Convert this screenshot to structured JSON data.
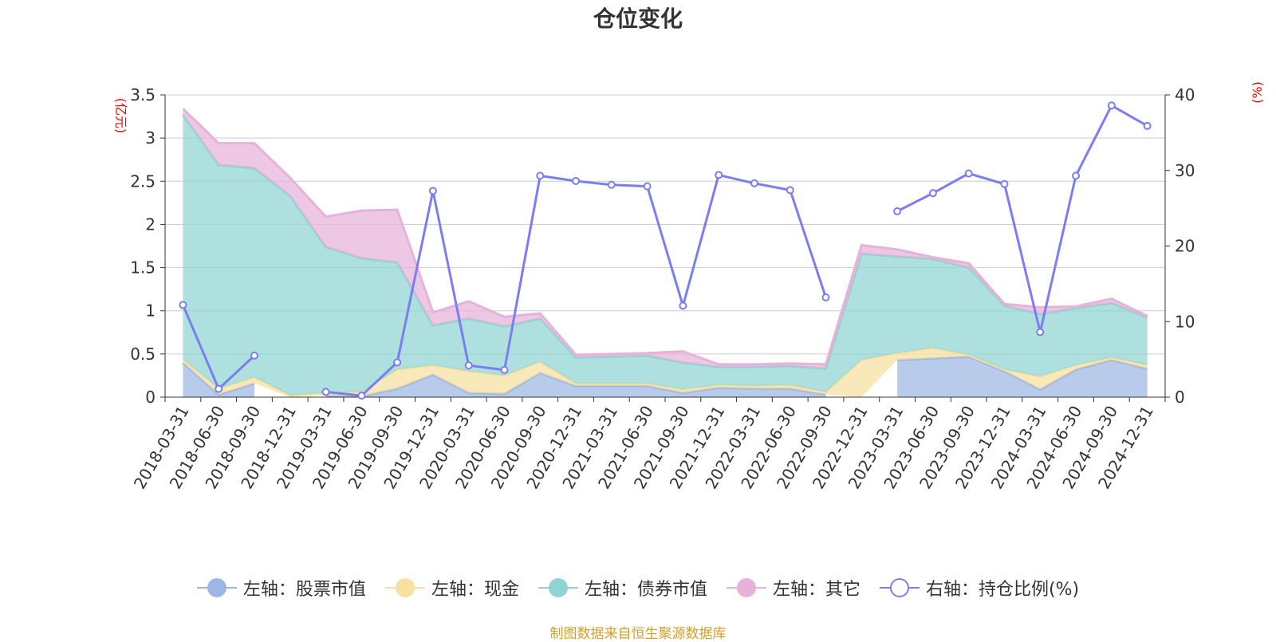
{
  "title": "仓位变化",
  "source_note": "制图数据来自恒生聚源数据库",
  "colors": {
    "stock": "#9db7e2",
    "cash": "#f7e0a0",
    "bond": "#8fd4d3",
    "other": "#e7b2da",
    "ratio": "#7b7ef0",
    "unit": "#ff0000"
  },
  "legend": [
    {
      "key": "stock",
      "label": "左轴：股票市值"
    },
    {
      "key": "cash",
      "label": "左轴：现金"
    },
    {
      "key": "bond",
      "label": "左轴：债券市值"
    },
    {
      "key": "other",
      "label": "左轴：其它"
    },
    {
      "key": "ratio",
      "label": "右轴：持仓比例(%)"
    }
  ],
  "chart_data": {
    "type": "area",
    "title": "仓位变化",
    "y_left_unit": "(亿元)",
    "y_right_unit": "(%)",
    "y_left_range": [
      0,
      3.5
    ],
    "y_left_ticks": [
      "0",
      "0.5",
      "1",
      "1.5",
      "2",
      "2.5",
      "3",
      "3.5"
    ],
    "y_right_range": [
      0,
      40
    ],
    "y_right_ticks": [
      "0",
      "10",
      "20",
      "30",
      "40"
    ],
    "grid": true,
    "legend_position": "bottom",
    "stacked": true,
    "categories": [
      "2018-03-31",
      "2018-06-30",
      "2018-09-30",
      "2018-12-31",
      "2019-03-31",
      "2019-06-30",
      "2019-09-30",
      "2019-12-31",
      "2020-03-31",
      "2020-06-30",
      "2020-09-30",
      "2020-12-31",
      "2021-03-31",
      "2021-06-30",
      "2021-09-30",
      "2021-12-31",
      "2022-03-31",
      "2022-06-30",
      "2022-09-30",
      "2022-12-31",
      "2023-03-31",
      "2023-06-30",
      "2023-09-30",
      "2023-12-31",
      "2024-03-31",
      "2024-06-30",
      "2024-09-30",
      "2024-12-31"
    ],
    "series": [
      {
        "name": "左轴：股票市值",
        "key": "stock",
        "axis": "left",
        "values": [
          0.4,
          0.03,
          0.16,
          null,
          0.02,
          0.01,
          0.1,
          0.26,
          0.05,
          0.04,
          0.28,
          0.13,
          0.13,
          0.13,
          0.05,
          0.11,
          0.1,
          0.1,
          0.03,
          null,
          0.43,
          0.45,
          0.47,
          0.3,
          0.09,
          0.32,
          0.43,
          0.33
        ]
      },
      {
        "name": "左轴：现金",
        "key": "cash",
        "axis": "left",
        "values": [
          0.04,
          0.07,
          0.07,
          0.02,
          0.03,
          0.05,
          0.22,
          0.11,
          0.25,
          0.21,
          0.13,
          0.03,
          0.03,
          0.03,
          0.04,
          0.03,
          0.03,
          0.04,
          0.03,
          0.43,
          0.08,
          0.12,
          0.02,
          0.02,
          0.15,
          0.05,
          0.03,
          0.04
        ]
      },
      {
        "name": "左轴：债券市值",
        "key": "bond",
        "axis": "left",
        "values": [
          2.83,
          2.59,
          2.42,
          2.31,
          1.69,
          1.55,
          1.24,
          0.46,
          0.61,
          0.57,
          0.5,
          0.3,
          0.31,
          0.32,
          0.31,
          0.21,
          0.22,
          0.22,
          0.27,
          1.23,
          1.12,
          1.03,
          1.01,
          0.74,
          0.72,
          0.66,
          0.63,
          0.55
        ]
      },
      {
        "name": "左轴：其它",
        "key": "other",
        "axis": "left",
        "values": [
          0.07,
          0.25,
          0.29,
          0.21,
          0.35,
          0.55,
          0.61,
          0.15,
          0.2,
          0.11,
          0.06,
          0.03,
          0.03,
          0.03,
          0.13,
          0.03,
          0.03,
          0.03,
          0.05,
          0.1,
          0.08,
          0.02,
          0.05,
          0.02,
          0.08,
          0.02,
          0.05,
          0.02
        ]
      },
      {
        "name": "右轴：持仓比例(%)",
        "key": "ratio",
        "axis": "right",
        "values": [
          12.2,
          1.1,
          5.5,
          null,
          0.7,
          0.2,
          4.6,
          27.3,
          4.2,
          3.6,
          29.3,
          28.6,
          28.1,
          27.9,
          12.1,
          29.4,
          28.3,
          27.4,
          13.2,
          null,
          24.6,
          27.0,
          29.6,
          28.2,
          8.6,
          29.3,
          38.6,
          35.9
        ]
      }
    ]
  }
}
